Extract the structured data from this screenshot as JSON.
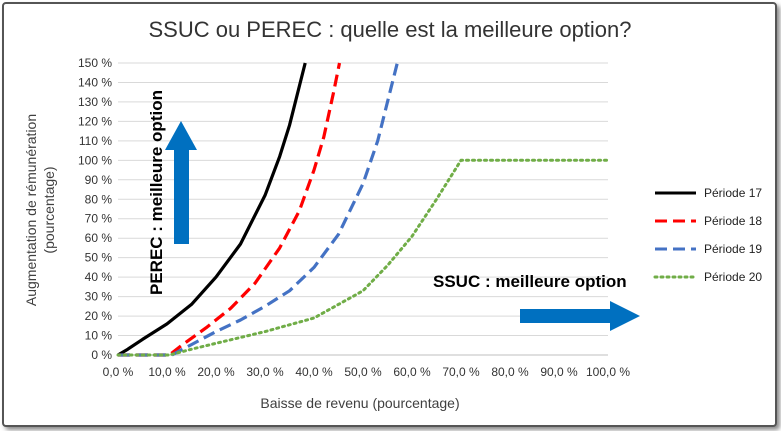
{
  "chart_data": {
    "type": "line",
    "title": "SSUC ou PEREC : quelle est la meilleure option?",
    "xlabel": "Baisse de revenu (pourcentage)",
    "ylabel_line1": "Augmentation de rémunération",
    "ylabel_line2": "(pourcentage)",
    "xlim": [
      0,
      100
    ],
    "ylim": [
      0,
      150
    ],
    "x_ticks": [
      0,
      10,
      20,
      30,
      40,
      50,
      60,
      70,
      80,
      90,
      100
    ],
    "x_tick_labels": [
      "0,0 %",
      "10,0 %",
      "20,0 %",
      "30,0 %",
      "40,0 %",
      "50,0 %",
      "60,0 %",
      "70,0 %",
      "80,0 %",
      "90,0 %",
      "100,0 %"
    ],
    "y_ticks": [
      0,
      10,
      20,
      30,
      40,
      50,
      60,
      70,
      80,
      90,
      100,
      110,
      120,
      130,
      140,
      150
    ],
    "y_tick_labels": [
      "0 %",
      "10 %",
      "20 %",
      "30 %",
      "40 %",
      "50 %",
      "60 %",
      "70 %",
      "80 %",
      "90 %",
      "100 %",
      "110 %",
      "120 %",
      "130 %",
      "140 %",
      "150 %"
    ],
    "grid": "horizontal",
    "legend_position": "right",
    "series": [
      {
        "name": "Période 17",
        "color": "#000000",
        "style": "solid",
        "x": [
          0,
          2,
          5,
          10,
          15,
          20,
          25,
          30,
          33,
          35,
          37,
          38.2
        ],
        "y": [
          0,
          3,
          8,
          16,
          26,
          40,
          57,
          82,
          102,
          118,
          138,
          150
        ]
      },
      {
        "name": "Période 18",
        "color": "#ff0000",
        "style": "dash",
        "x": [
          0,
          10.5,
          13,
          18,
          23,
          28,
          33,
          37,
          40,
          42,
          44,
          45.2
        ],
        "y": [
          0,
          0,
          5,
          14,
          24,
          37,
          55,
          74,
          95,
          112,
          135,
          150
        ]
      },
      {
        "name": "Période 19",
        "color": "#4472c4",
        "style": "dash",
        "x": [
          0,
          11,
          14,
          20,
          25,
          30,
          35,
          40,
          45,
          50,
          53,
          55,
          57
        ],
        "y": [
          0,
          0,
          4,
          12,
          18,
          25,
          33,
          45,
          62,
          88,
          110,
          130,
          150
        ]
      },
      {
        "name": "Période 20",
        "color": "#70ad47",
        "style": "dot",
        "x": [
          0,
          10.5,
          15,
          20,
          30,
          40,
          50,
          55,
          60,
          65,
          70,
          100
        ],
        "y": [
          0,
          0,
          3,
          6,
          12,
          19,
          33,
          46,
          61,
          80,
          100,
          100
        ]
      }
    ],
    "annotations": {
      "perec": "PEREC : meilleure option",
      "ssuc": "SSUC : meilleure option"
    }
  },
  "colors": {
    "arrow": "#0070c0",
    "grid": "#d9d9d9",
    "axis": "#bfbfbf"
  }
}
